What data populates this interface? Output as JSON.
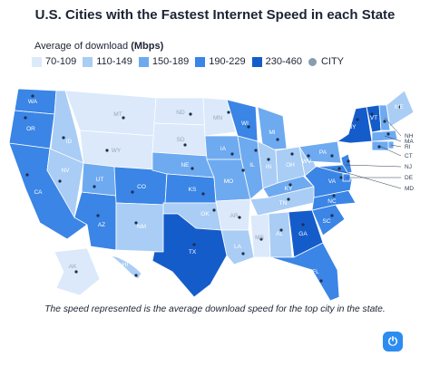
{
  "title": "U.S. Cities with the Fastest Internet Speed in each State",
  "legend": {
    "title_prefix": "Average of download ",
    "title_bold": "(Mbps)",
    "bins": [
      {
        "label": "70-109",
        "color": "#dbe9fb"
      },
      {
        "label": "110-149",
        "color": "#a9cdf5"
      },
      {
        "label": "150-189",
        "color": "#6eaaf0"
      },
      {
        "label": "190-229",
        "color": "#3a85e6"
      },
      {
        "label": "230-460",
        "color": "#155ccb"
      }
    ],
    "city_label": "CITY",
    "city_color": "#8a9bb0"
  },
  "states": [
    {
      "id": "WA",
      "bin": 3
    },
    {
      "id": "OR",
      "bin": 3
    },
    {
      "id": "CA",
      "bin": 3
    },
    {
      "id": "ID",
      "bin": 1
    },
    {
      "id": "NV",
      "bin": 1
    },
    {
      "id": "AZ",
      "bin": 3
    },
    {
      "id": "MT",
      "bin": 0
    },
    {
      "id": "WY",
      "bin": 0
    },
    {
      "id": "UT",
      "bin": 2
    },
    {
      "id": "CO",
      "bin": 3
    },
    {
      "id": "NM",
      "bin": 1
    },
    {
      "id": "ND",
      "bin": 0
    },
    {
      "id": "SD",
      "bin": 0
    },
    {
      "id": "NE",
      "bin": 2
    },
    {
      "id": "KS",
      "bin": 3
    },
    {
      "id": "OK",
      "bin": 1
    },
    {
      "id": "TX",
      "bin": 4
    },
    {
      "id": "MN",
      "bin": 0
    },
    {
      "id": "IA",
      "bin": 2
    },
    {
      "id": "MO",
      "bin": 2
    },
    {
      "id": "AR",
      "bin": 0
    },
    {
      "id": "LA",
      "bin": 1
    },
    {
      "id": "WI",
      "bin": 3
    },
    {
      "id": "IL",
      "bin": 2
    },
    {
      "id": "MS",
      "bin": 0
    },
    {
      "id": "MI",
      "bin": 2
    },
    {
      "id": "IN",
      "bin": 1
    },
    {
      "id": "KY",
      "bin": 2
    },
    {
      "id": "TN",
      "bin": 1
    },
    {
      "id": "AL",
      "bin": 1
    },
    {
      "id": "OH",
      "bin": 1
    },
    {
      "id": "GA",
      "bin": 4
    },
    {
      "id": "FL",
      "bin": 3
    },
    {
      "id": "SC",
      "bin": 3
    },
    {
      "id": "NC",
      "bin": 3
    },
    {
      "id": "VA",
      "bin": 3
    },
    {
      "id": "WV",
      "bin": 1
    },
    {
      "id": "PA",
      "bin": 2
    },
    {
      "id": "NY",
      "bin": 4
    },
    {
      "id": "VT",
      "bin": 4
    },
    {
      "id": "NH",
      "bin": 2
    },
    {
      "id": "ME",
      "bin": 1
    },
    {
      "id": "MA",
      "bin": 2
    },
    {
      "id": "RI",
      "bin": 2
    },
    {
      "id": "CT",
      "bin": 2
    },
    {
      "id": "NJ",
      "bin": 3
    },
    {
      "id": "DE",
      "bin": 3
    },
    {
      "id": "MD",
      "bin": 3
    },
    {
      "id": "AK",
      "bin": 0
    },
    {
      "id": "HI",
      "bin": 1
    }
  ],
  "caption": "The speed represented is the average download speed for the top city in the state.",
  "logo_glyph": "⏻"
}
